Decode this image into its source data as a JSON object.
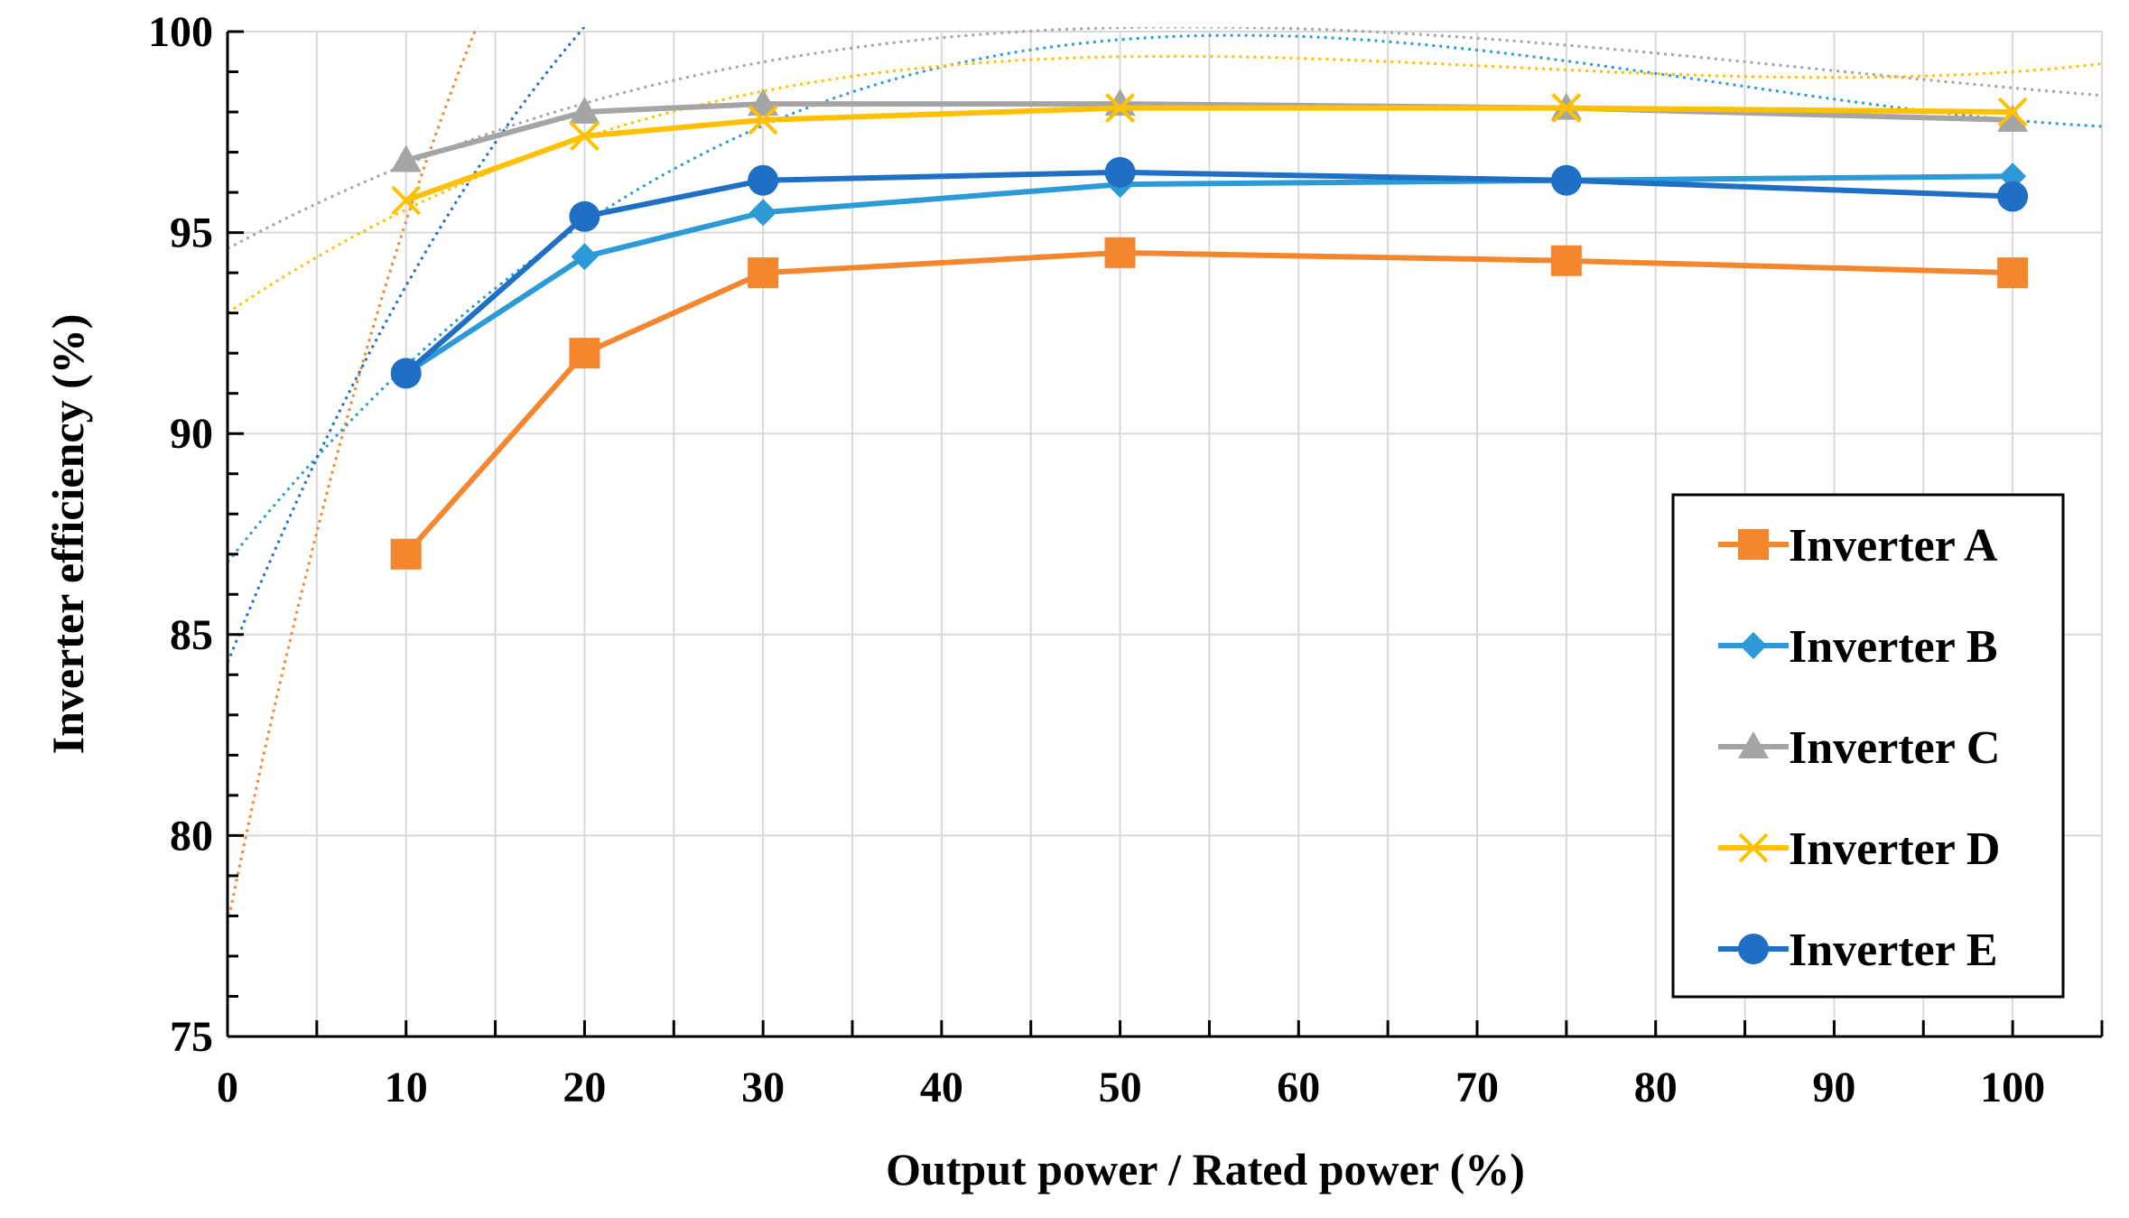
{
  "chart_data": {
    "type": "line",
    "title": "",
    "xlabel": "Output power / Rated power (%)",
    "ylabel": "Inverter efficiency (%)",
    "xlim": [
      0,
      105
    ],
    "ylim": [
      75,
      100
    ],
    "xticks": [
      0,
      10,
      20,
      30,
      40,
      50,
      60,
      70,
      80,
      90,
      100
    ],
    "yticks": [
      75,
      80,
      85,
      90,
      95,
      100
    ],
    "grid": true,
    "legend_position": "bottom-right",
    "x": [
      10,
      20,
      30,
      50,
      75,
      100
    ],
    "series": [
      {
        "name": "Inverter A",
        "color": "#F4862E",
        "marker": "square",
        "values": [
          87.0,
          92.0,
          94.0,
          94.5,
          94.3,
          94.0
        ],
        "trend": [
          77.8,
          2.17,
          -0.0455,
          0.000333
        ]
      },
      {
        "name": "Inverter B",
        "color": "#2B9AD6",
        "marker": "diamond",
        "values": [
          91.5,
          94.4,
          95.5,
          96.2,
          96.3,
          96.4
        ],
        "trend": [
          86.8,
          0.56,
          -0.0075,
          3e-05
        ]
      },
      {
        "name": "Inverter C",
        "color": "#A5A5A5",
        "marker": "triangle",
        "values": [
          96.8,
          98.0,
          98.2,
          98.2,
          98.1,
          97.8
        ],
        "trend": [
          94.6,
          0.24,
          -0.0032,
          1.2e-05
        ]
      },
      {
        "name": "Inverter D",
        "color": "#FFC000",
        "marker": "cross",
        "values": [
          95.8,
          97.4,
          97.8,
          98.1,
          98.1,
          98.0
        ],
        "trend": [
          93.0,
          0.3,
          -0.0045,
          2.1e-05
        ]
      },
      {
        "name": "Inverter E",
        "color": "#1F6FC5",
        "marker": "circle",
        "values": [
          91.5,
          95.4,
          96.3,
          96.5,
          96.3,
          95.9
        ],
        "trend": [
          84.3,
          1.1,
          -0.017,
          7.8e-05
        ]
      }
    ],
    "legend": {
      "items": [
        "Inverter A",
        "Inverter B",
        "Inverter C",
        "Inverter D",
        "Inverter E"
      ]
    }
  }
}
